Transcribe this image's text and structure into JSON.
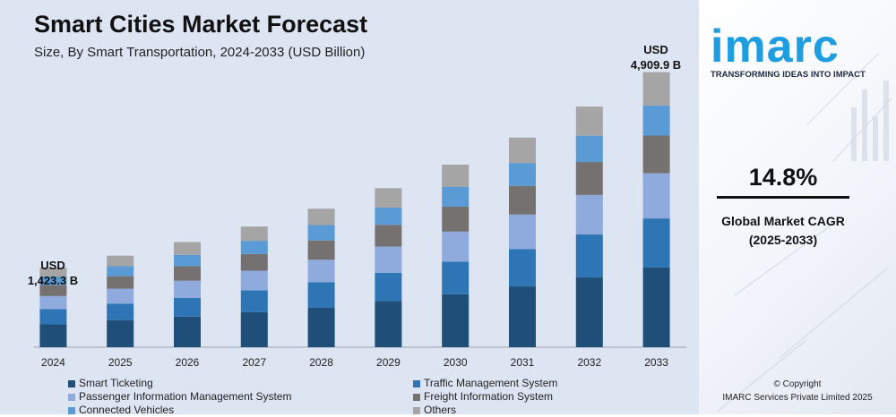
{
  "header": {
    "title": "Smart Cities Market Forecast",
    "subtitle": "Size, By Smart Transportation, 2024-2033 (USD Billion)"
  },
  "annotations": {
    "start_line1": "USD",
    "start_line2": "1,423.3 B",
    "end_line1": "USD",
    "end_line2": "4,909.9 B"
  },
  "brand": {
    "logo_text": "imarc",
    "tagline": "TRANSFORMING IDEAS INTO IMPACT",
    "accent_color": "#1e9ee0"
  },
  "cagr": {
    "value": "14.8%",
    "label_line1": "Global Market CAGR",
    "label_line2": "(2025-2033)"
  },
  "footer": {
    "copyright_line1": "© Copyright",
    "copyright_line2": "IMARC Services Private Limited 2025"
  },
  "chart_data": {
    "type": "bar",
    "stacked": true,
    "title": "Smart Cities Market Forecast",
    "subtitle": "Size, By Smart Transportation, 2024-2033 (USD Billion)",
    "categories": [
      "2024",
      "2025",
      "2026",
      "2027",
      "2028",
      "2029",
      "2030",
      "2031",
      "2032",
      "2033"
    ],
    "totals": [
      1423.3,
      1634,
      1876,
      2154,
      2473,
      2839,
      3259,
      3741,
      4295,
      4909.9
    ],
    "ylim": [
      0,
      5000
    ],
    "grid": false,
    "legend_position": "bottom",
    "series": [
      {
        "name": "Smart Ticketing",
        "color": "#1f4e79",
        "values": [
          408,
          484,
          546,
          628,
          709,
          825,
          945,
          1085,
          1245,
          1423
        ]
      },
      {
        "name": "Traffic Management System",
        "color": "#2e75b6",
        "values": [
          272,
          291,
          336,
          388,
          453,
          504,
          582,
          668,
          767,
          876
        ]
      },
      {
        "name": "Passenger Information Management System",
        "color": "#8faadc",
        "values": [
          233,
          268,
          304,
          350,
          399,
          467,
          536,
          615,
          706,
          807
        ]
      },
      {
        "name": "Freight Information System",
        "color": "#767171",
        "values": [
          194,
          225,
          259,
          297,
          345,
          388,
          446,
          512,
          588,
          672
        ]
      },
      {
        "name": "Connected Vehicles",
        "color": "#5b9bd5",
        "values": [
          155,
          179,
          203,
          236,
          274,
          310,
          356,
          409,
          469,
          537
        ]
      },
      {
        "name": "Others",
        "color": "#a5a5a5",
        "values": [
          161,
          187,
          228,
          255,
          293,
          345,
          394,
          452,
          520,
          595
        ]
      }
    ]
  }
}
